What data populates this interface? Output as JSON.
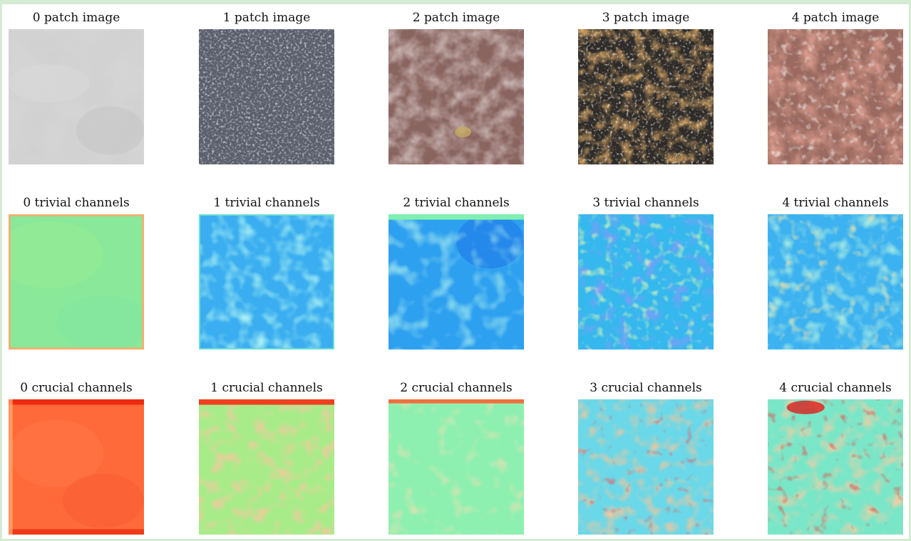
{
  "figure": {
    "rows": [
      {
        "kind": "patch",
        "titles": [
          "0 patch image",
          "1 patch image",
          "2 patch image",
          "3 patch image",
          "4 patch image"
        ]
      },
      {
        "kind": "trivial",
        "titles": [
          "0 trivial channels",
          "1 trivial channels",
          "2 trivial channels",
          "3 trivial channels",
          "4 trivial channels"
        ]
      },
      {
        "kind": "crucial",
        "titles": [
          "0 crucial channels",
          "1 crucial channels",
          "2 crucial channels",
          "3 crucial channels",
          "4 crucial channels"
        ]
      }
    ]
  },
  "colors": {
    "background": "#ffffff",
    "border": "#d4ebd4"
  }
}
